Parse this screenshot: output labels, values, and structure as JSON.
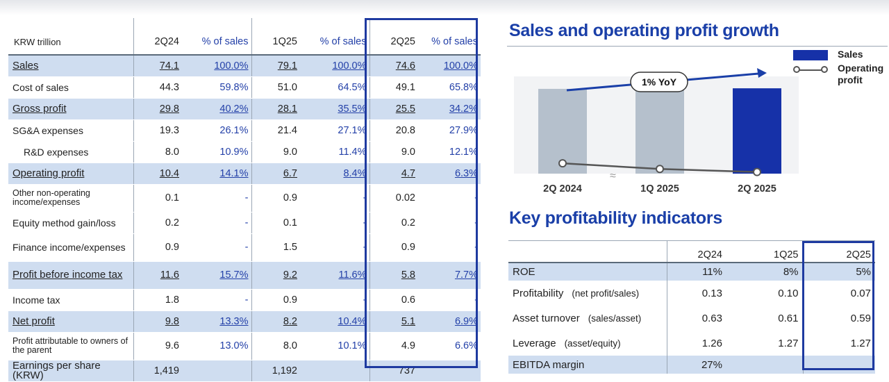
{
  "financial_table": {
    "unit": "KRW trillion",
    "headers": [
      "2Q24",
      "% of sales",
      "1Q25",
      "% of sales",
      "2Q25",
      "% of sales"
    ],
    "rows": [
      {
        "label": "Sales",
        "highlight": true,
        "underline": true,
        "values": [
          "74.1",
          "100.0%",
          "79.1",
          "100.0%",
          "74.6",
          "100.0%"
        ]
      },
      {
        "label": "Cost of sales",
        "values": [
          "44.3",
          "59.8%",
          "51.0",
          "64.5%",
          "49.1",
          "65.8%"
        ]
      },
      {
        "label": "Gross profit",
        "highlight": true,
        "underline": true,
        "values": [
          "29.8",
          "40.2%",
          "28.1",
          "35.5%",
          "25.5",
          "34.2%"
        ]
      },
      {
        "label": "SG&A expenses",
        "values": [
          "19.3",
          "26.1%",
          "21.4",
          "27.1%",
          "20.8",
          "27.9%"
        ]
      },
      {
        "label": "R&D expenses",
        "indent": true,
        "values": [
          "8.0",
          "10.9%",
          "9.0",
          "11.4%",
          "9.0",
          "12.1%"
        ]
      },
      {
        "label": "Operating profit",
        "highlight": true,
        "underline": true,
        "values": [
          "10.4",
          "14.1%",
          "6.7",
          "8.4%",
          "4.7",
          "6.3%"
        ]
      },
      {
        "label": "Other non-operating income/expenses",
        "small": true,
        "values": [
          "0.1",
          "-",
          "0.9",
          "-",
          "0.02",
          "-"
        ]
      },
      {
        "label": "Equity method gain/loss",
        "values": [
          "0.2",
          "-",
          "0.1",
          "-",
          "0.2",
          "-"
        ]
      },
      {
        "label": "Finance income/expenses",
        "values": [
          "0.9",
          "-",
          "1.5",
          "-",
          "0.9",
          "-"
        ]
      },
      {
        "label": "Profit before income tax",
        "highlight": true,
        "underline": true,
        "values": [
          "11.6",
          "15.7%",
          "9.2",
          "11.6%",
          "5.8",
          "7.7%"
        ]
      },
      {
        "label": "Income tax",
        "values": [
          "1.8",
          "-",
          "0.9",
          "-",
          "0.6",
          "-"
        ]
      },
      {
        "label": "Net profit",
        "highlight": true,
        "underline": true,
        "values": [
          "9.8",
          "13.3%",
          "8.2",
          "10.4%",
          "5.1",
          "6.9%"
        ]
      },
      {
        "label": "Profit attributable to owners of the parent",
        "small": true,
        "values": [
          "9.6",
          "13.0%",
          "8.0",
          "10.1%",
          "4.9",
          "6.6%"
        ]
      },
      {
        "label": "Earnings per share (KRW)",
        "highlight": true,
        "values": [
          "1,419",
          "",
          "1,192",
          "",
          "737",
          ""
        ]
      }
    ]
  },
  "sales_chart_title": "Sales and operating profit growth",
  "kpi_title": "Key profitability indicators",
  "chart_data": {
    "type": "bar",
    "title": "Sales and operating profit growth",
    "categories": [
      "2Q 2024",
      "1Q 2025",
      "2Q 2025"
    ],
    "series": [
      {
        "name": "Sales",
        "type": "bar",
        "values": [
          74.1,
          79.1,
          74.6
        ],
        "colors": [
          "#b5c0cc",
          "#b5c0cc",
          "#1631a8"
        ]
      },
      {
        "name": "Operating profit",
        "type": "line",
        "values": [
          10.4,
          6.7,
          4.7
        ]
      }
    ],
    "annotation": "1% YoY",
    "legend": [
      "Sales",
      "Operating profit"
    ],
    "legend_position": "right",
    "ylim": [
      0,
      85
    ]
  },
  "kpi_table": {
    "headers": [
      "2Q24",
      "1Q25",
      "2Q25"
    ],
    "rows": [
      {
        "label": "ROE",
        "sub": "",
        "highlight": true,
        "values": [
          "11%",
          "8%",
          "5%"
        ]
      },
      {
        "label": "Profitability",
        "sub": "(net profit/sales)",
        "values": [
          "0.13",
          "0.10",
          "0.07"
        ]
      },
      {
        "label": "Asset turnover",
        "sub": "(sales/asset)",
        "values": [
          "0.63",
          "0.61",
          "0.59"
        ]
      },
      {
        "label": "Leverage",
        "sub": "(asset/equity)",
        "values": [
          "1.26",
          "1.27",
          "1.27"
        ]
      },
      {
        "label": "EBITDA margin",
        "sub": "",
        "highlight": true,
        "values": [
          "27%",
          "",
          ""
        ]
      }
    ]
  }
}
